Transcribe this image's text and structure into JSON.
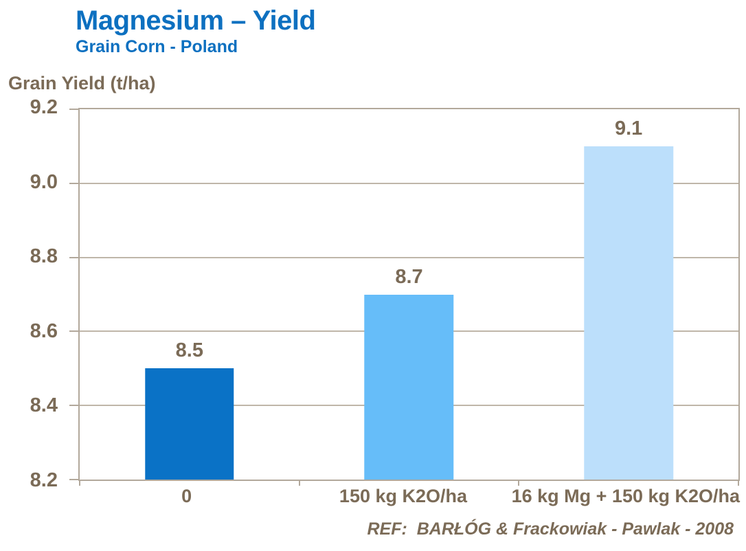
{
  "header": {
    "title": "Magnesium – Yield",
    "subtitle": "Grain Corn - Poland"
  },
  "footer": "REF:  BARŁÓG & Frackowiak - Pawlak - 2008",
  "colors": {
    "title_blue": "#0d70c0",
    "text_brown": "#7b6b57",
    "axis_line": "#b2a89b",
    "gridline": "#bfb6a9",
    "background": "#ffffff"
  },
  "chart_data": {
    "type": "bar",
    "title": "Magnesium – Yield",
    "subtitle": "Grain Corn - Poland",
    "ylabel": "Grain Yield (t/ha)",
    "xlabel": "",
    "categories": [
      "0",
      "150 kg K2O/ha",
      "16 kg Mg + 150 kg K2O/ha"
    ],
    "values": [
      8.5,
      8.7,
      9.1
    ],
    "bar_colors": [
      "#0a72c6",
      "#66bdf9",
      "#bcdffb"
    ],
    "ylim": [
      8.2,
      9.2
    ],
    "yticks": [
      9.2,
      9.0,
      8.8,
      8.6,
      8.4,
      8.2
    ],
    "grid": "horizontal",
    "legend": "none",
    "source": "REF:  BARŁÓG & Frackowiak - Pawlak - 2008"
  }
}
